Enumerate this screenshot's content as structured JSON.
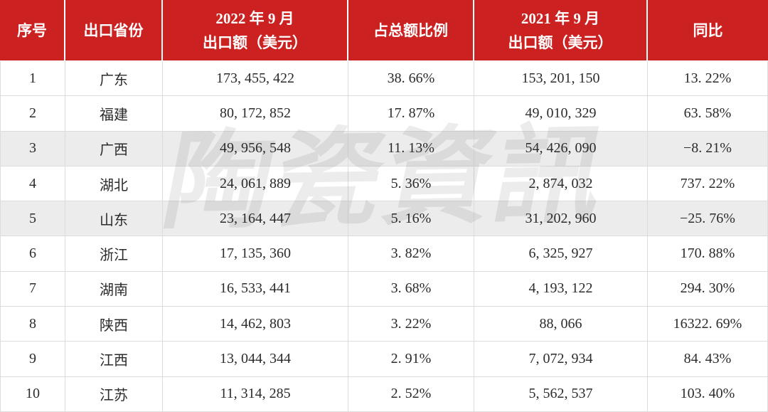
{
  "watermark": {
    "text": "陶瓷資訊"
  },
  "colors": {
    "header_bg": "#cc2121",
    "header_text": "#ffffff",
    "shaded_row_bg": "#ececec",
    "grid_line": "#dcdcdc",
    "body_text": "#2b2b2b"
  },
  "table": {
    "columns": [
      {
        "key": "no",
        "label": "序号"
      },
      {
        "key": "province",
        "label": "出口省份"
      },
      {
        "key": "amount_2022",
        "label": "2022 年 9 月\n出口额（美元）"
      },
      {
        "key": "share",
        "label": "占总额比例"
      },
      {
        "key": "amount_2021",
        "label": "2021 年 9 月\n出口额（美元）"
      },
      {
        "key": "yoy",
        "label": "同比"
      }
    ],
    "rows": [
      {
        "no": "1",
        "province": "广东",
        "amount_2022": "173, 455, 422",
        "share": "38. 66%",
        "amount_2021": "153, 201, 150",
        "yoy": "13. 22%",
        "shaded": false
      },
      {
        "no": "2",
        "province": "福建",
        "amount_2022": "80, 172, 852",
        "share": "17. 87%",
        "amount_2021": "49, 010, 329",
        "yoy": "63. 58%",
        "shaded": false
      },
      {
        "no": "3",
        "province": "广西",
        "amount_2022": "49, 956, 548",
        "share": "11. 13%",
        "amount_2021": "54, 426, 090",
        "yoy": "−8. 21%",
        "shaded": true
      },
      {
        "no": "4",
        "province": "湖北",
        "amount_2022": "24, 061, 889",
        "share": "5. 36%",
        "amount_2021": "2, 874, 032",
        "yoy": "737. 22%",
        "shaded": false
      },
      {
        "no": "5",
        "province": "山东",
        "amount_2022": "23, 164, 447",
        "share": "5. 16%",
        "amount_2021": "31, 202, 960",
        "yoy": "−25. 76%",
        "shaded": true
      },
      {
        "no": "6",
        "province": "浙江",
        "amount_2022": "17, 135, 360",
        "share": "3. 82%",
        "amount_2021": "6, 325, 927",
        "yoy": "170. 88%",
        "shaded": false
      },
      {
        "no": "7",
        "province": "湖南",
        "amount_2022": "16, 533, 441",
        "share": "3. 68%",
        "amount_2021": "4, 193, 122",
        "yoy": "294. 30%",
        "shaded": false
      },
      {
        "no": "8",
        "province": "陕西",
        "amount_2022": "14, 462, 803",
        "share": "3. 22%",
        "amount_2021": "88, 066",
        "yoy": "16322. 69%",
        "shaded": false
      },
      {
        "no": "9",
        "province": "江西",
        "amount_2022": "13, 044, 344",
        "share": "2. 91%",
        "amount_2021": "7, 072, 934",
        "yoy": "84. 43%",
        "shaded": false
      },
      {
        "no": "10",
        "province": "江苏",
        "amount_2022": "11, 314, 285",
        "share": "2. 52%",
        "amount_2021": "5, 562, 537",
        "yoy": "103. 40%",
        "shaded": false
      }
    ]
  },
  "chart_data": {
    "type": "table",
    "title": "",
    "columns": [
      "序号",
      "出口省份",
      "2022年9月出口额（美元）",
      "占总额比例",
      "2021年9月出口额（美元）",
      "同比"
    ],
    "rows": [
      [
        1,
        "广东",
        173455422,
        "38.66%",
        153201150,
        "13.22%"
      ],
      [
        2,
        "福建",
        80172852,
        "17.87%",
        49010329,
        "63.58%"
      ],
      [
        3,
        "广西",
        49956548,
        "11.13%",
        54426090,
        "-8.21%"
      ],
      [
        4,
        "湖北",
        24061889,
        "5.36%",
        2874032,
        "737.22%"
      ],
      [
        5,
        "山东",
        23164447,
        "5.16%",
        31202960,
        "-25.76%"
      ],
      [
        6,
        "浙江",
        17135360,
        "3.82%",
        6325927,
        "170.88%"
      ],
      [
        7,
        "湖南",
        16533441,
        "3.68%",
        4193122,
        "294.30%"
      ],
      [
        8,
        "陕西",
        14462803,
        "3.22%",
        88066,
        "16322.69%"
      ],
      [
        9,
        "江西",
        13044344,
        "2.91%",
        7072934,
        "84.43%"
      ],
      [
        10,
        "江苏",
        11314285,
        "2.52%",
        5562537,
        "103.40%"
      ]
    ]
  }
}
